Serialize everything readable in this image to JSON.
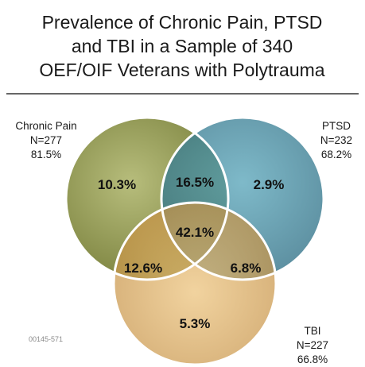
{
  "title_lines": [
    "Prevalence of Chronic Pain, PTSD",
    "and TBI in a Sample of 340",
    "OEF/OIF Veterans with Polytrauma"
  ],
  "sets": {
    "chronic_pain": {
      "name": "Chronic Pain",
      "n": "N=277",
      "pct": "81.5%",
      "color": "#9aa15c"
    },
    "ptsd": {
      "name": "PTSD",
      "n": "N=232",
      "pct": "68.2%",
      "color": "#3e8aa1"
    },
    "tbi": {
      "name": "TBI",
      "n": "N=227",
      "pct": "66.8%",
      "color": "#d8a85a"
    }
  },
  "regions": {
    "chronic_pain_only": "10.3%",
    "chronic_pain_ptsd": "16.5%",
    "ptsd_only": "2.9%",
    "all_three": "42.1%",
    "chronic_pain_tbi": "12.6%",
    "ptsd_tbi": "6.8%",
    "tbi_only": "5.3%"
  },
  "figure_code": "00145-571",
  "colors": {
    "divider": "#333333",
    "outline": "#ffffff"
  }
}
